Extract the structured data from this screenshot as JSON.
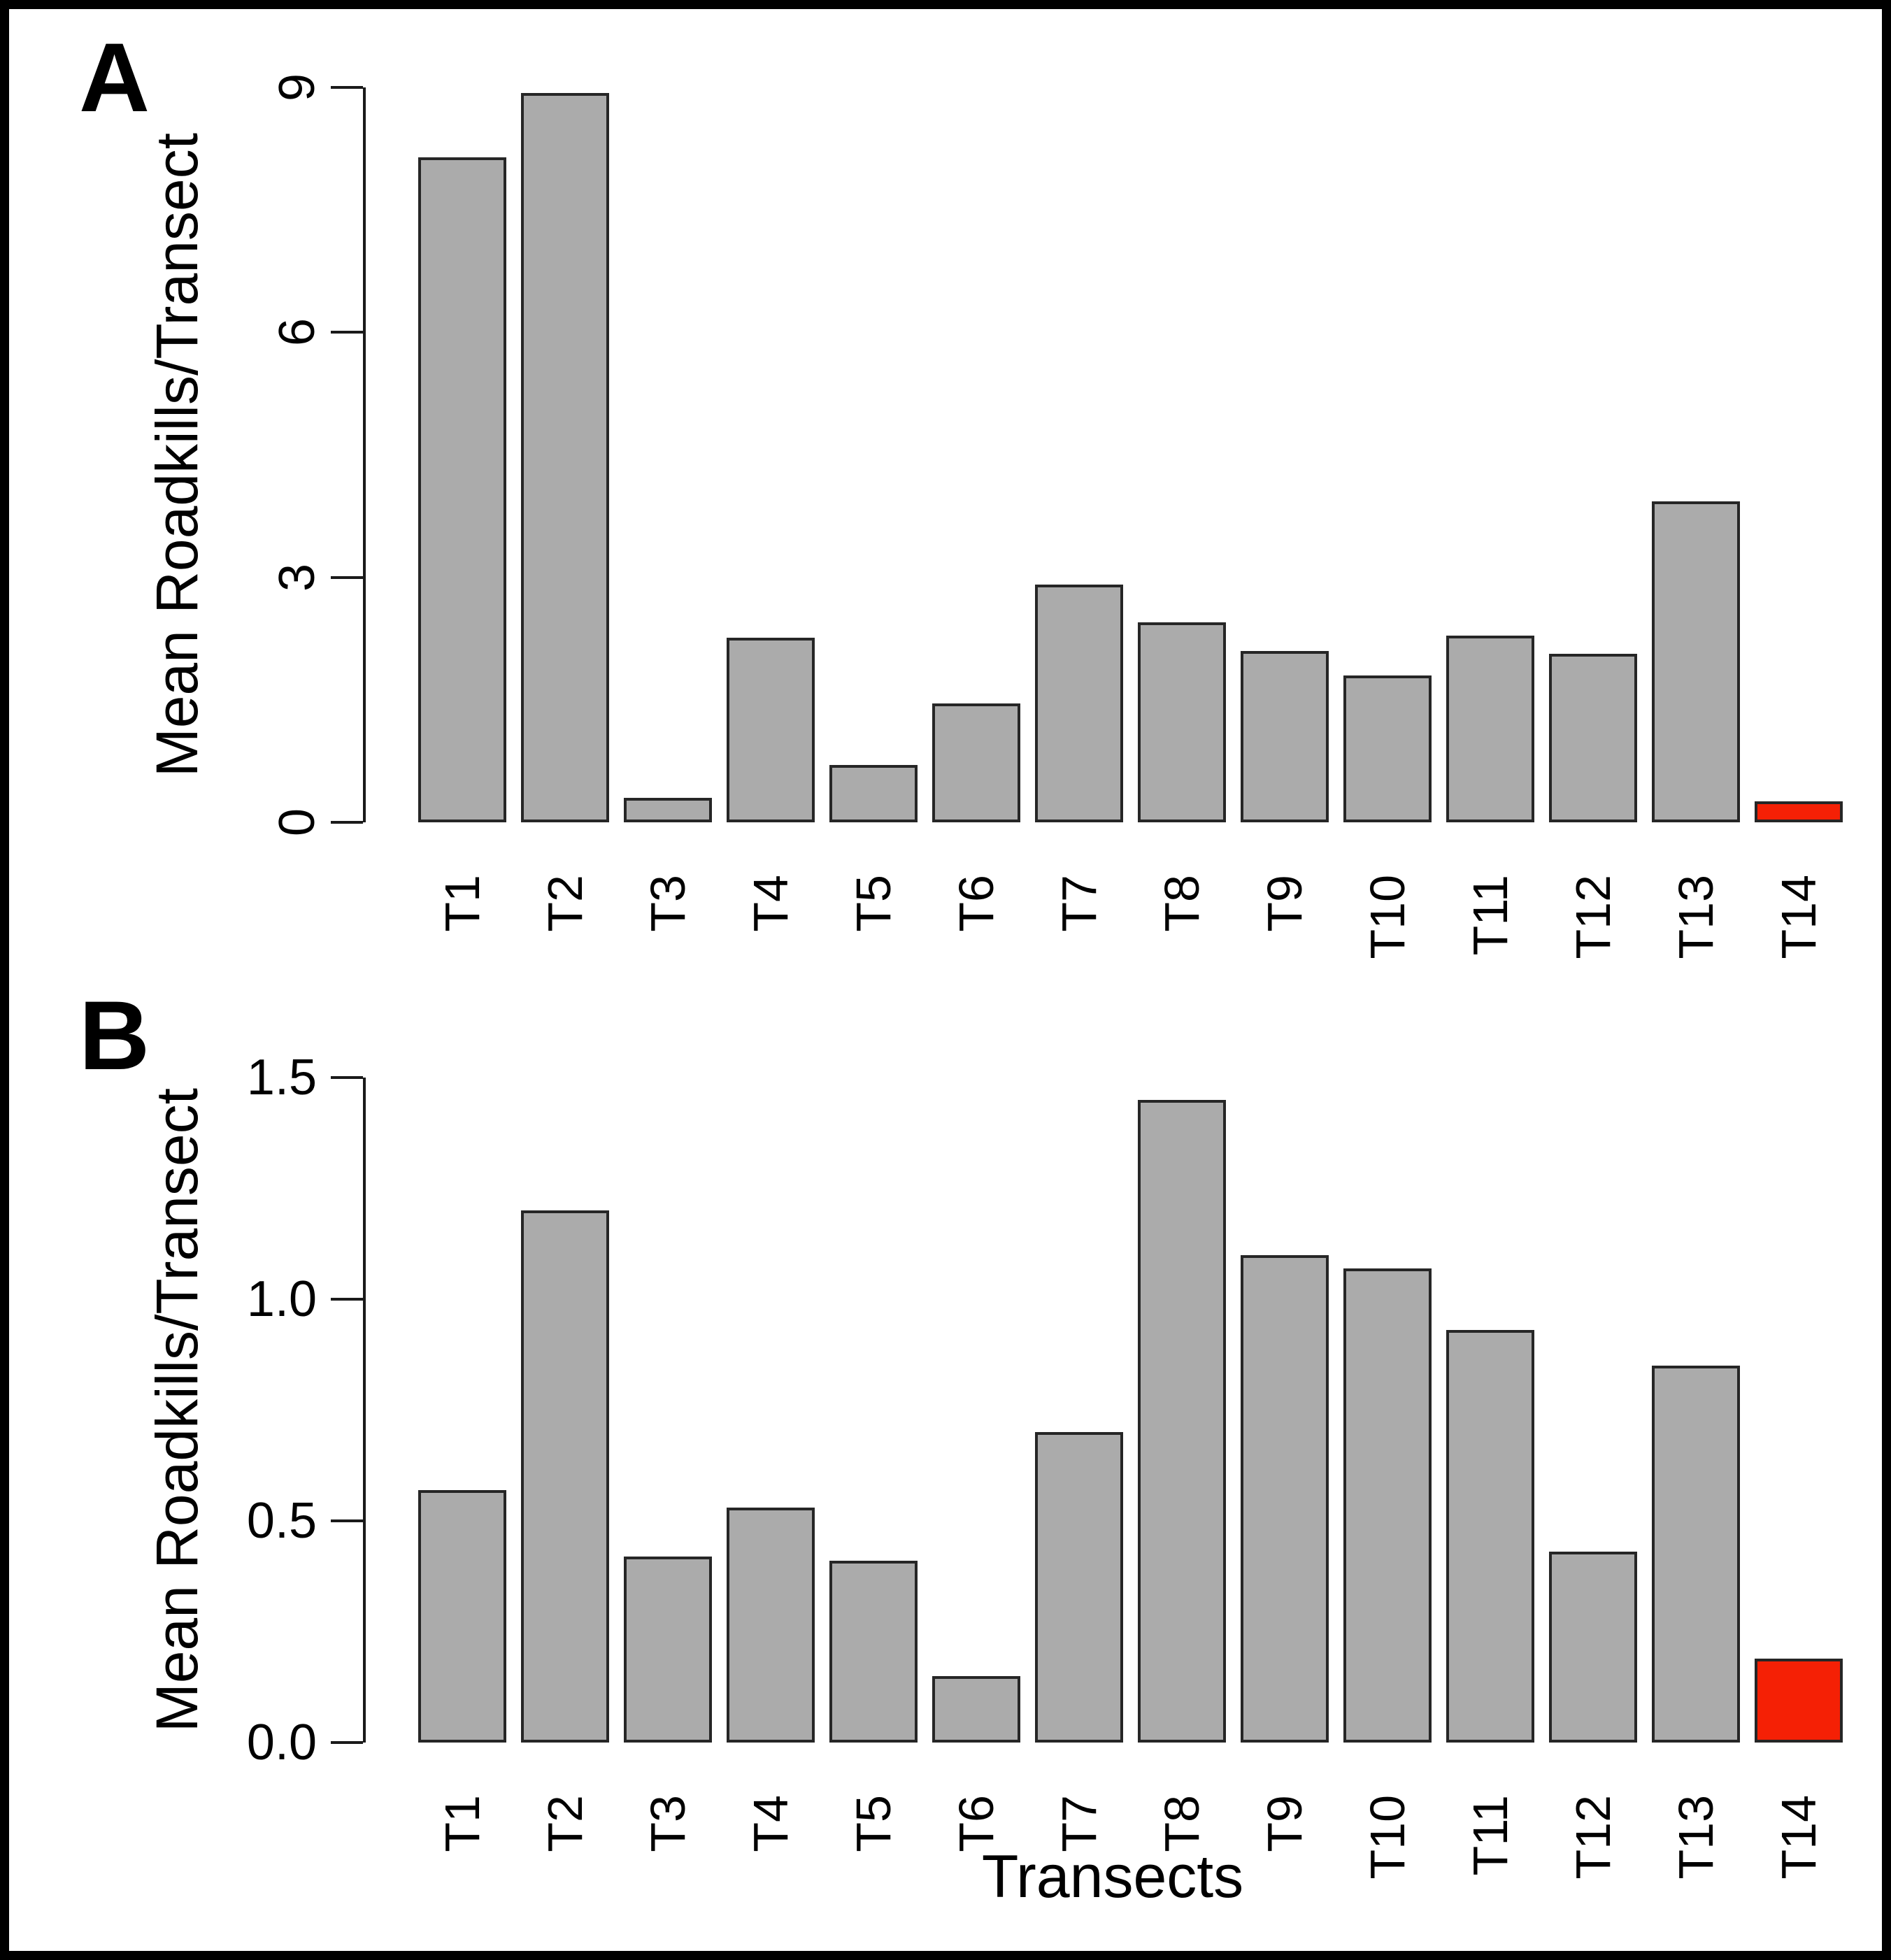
{
  "chart_data": [
    {
      "type": "bar",
      "panel_label": "A",
      "ylabel": "Mean Roadkills/Transect",
      "xlabel": "",
      "categories": [
        "T1",
        "T2",
        "T3",
        "T4",
        "T5",
        "T6",
        "T7",
        "T8",
        "T9",
        "T10",
        "T11",
        "T12",
        "T13",
        "T14"
      ],
      "values": [
        8.14,
        8.93,
        0.3,
        2.26,
        0.7,
        1.46,
        2.91,
        2.45,
        2.1,
        1.8,
        2.29,
        2.06,
        3.93,
        0.26
      ],
      "ylim": [
        0,
        9
      ],
      "yticks": [
        0,
        3,
        6,
        9
      ],
      "ytick_labels": [
        "0",
        "3",
        "6",
        "9"
      ],
      "grid": "off",
      "legend": "none",
      "bar_color": "#ababab",
      "bar_border_color": "#262626",
      "highlight_category": "T14",
      "highlight_color": "#f52005"
    },
    {
      "type": "bar",
      "panel_label": "B",
      "ylabel": "Mean Roadkills/Transect",
      "xlabel": "Transects",
      "categories": [
        "T1",
        "T2",
        "T3",
        "T4",
        "T5",
        "T6",
        "T7",
        "T8",
        "T9",
        "T10",
        "T11",
        "T12",
        "T13",
        "T14"
      ],
      "values": [
        0.57,
        1.2,
        0.42,
        0.53,
        0.41,
        0.15,
        0.7,
        1.45,
        1.1,
        1.07,
        0.93,
        0.43,
        0.85,
        0.19
      ],
      "ylim": [
        0,
        1.5
      ],
      "yticks": [
        0,
        0.5,
        1.0,
        1.5
      ],
      "ytick_labels": [
        "0.0",
        "0.5",
        "1.0",
        "1.5"
      ],
      "grid": "off",
      "legend": "none",
      "bar_color": "#ababab",
      "bar_border_color": "#262626",
      "highlight_category": "T14",
      "highlight_color": "#f52005"
    }
  ]
}
